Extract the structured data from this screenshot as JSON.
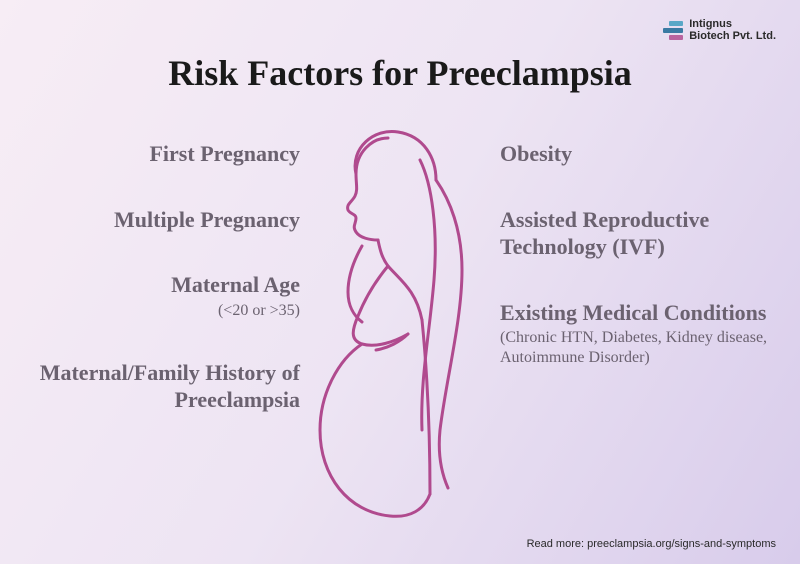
{
  "title": "Risk Factors for Preeclampsia",
  "logo": {
    "line1": "Intignus",
    "line2": "Biotech Pvt. Ltd.",
    "bars": [
      {
        "width": 14,
        "color": "#5aa7c7",
        "offset": 6
      },
      {
        "width": 20,
        "color": "#3a7aa3",
        "offset": 0
      },
      {
        "width": 14,
        "color": "#b9639f",
        "offset": 6
      }
    ]
  },
  "left_factors": [
    {
      "main": "First Pregnancy",
      "sub": ""
    },
    {
      "main": "Multiple Pregnancy",
      "sub": ""
    },
    {
      "main": "Maternal Age",
      "sub": "(<20 or >35)"
    },
    {
      "main": "Maternal/Family History of Preeclampsia",
      "sub": ""
    }
  ],
  "right_factors": [
    {
      "main": "Obesity",
      "sub": ""
    },
    {
      "main": "Assisted Reproductive Technology (IVF)",
      "sub": ""
    },
    {
      "main": "Existing Medical Conditions",
      "sub": "(Chronic HTN, Diabetes, Kidney disease, Autoimmune Disorder)"
    }
  ],
  "figure": {
    "stroke_color": "#b04a8e",
    "stroke_width": 3
  },
  "footer": "Read more: preeclampsia.org/signs-and-symptoms",
  "colors": {
    "text_muted": "#6b6270",
    "title": "#1a1a1a"
  }
}
